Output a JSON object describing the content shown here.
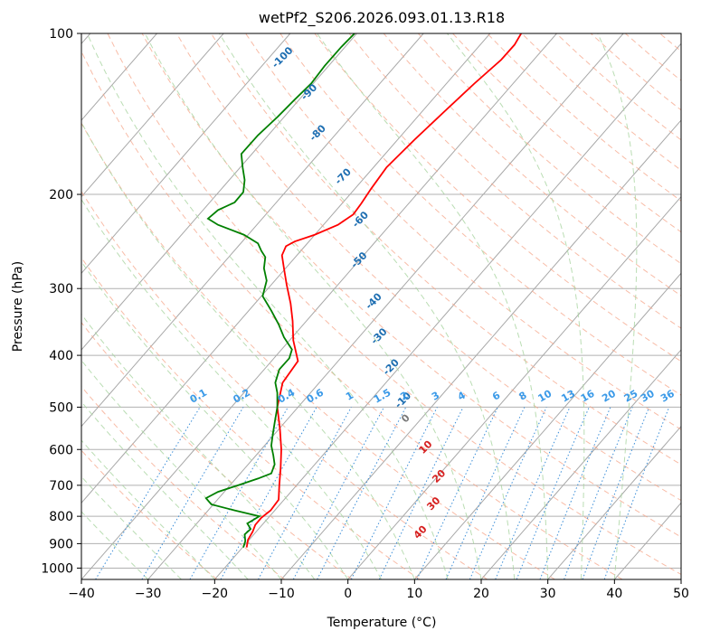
{
  "chart_data": {
    "type": "line",
    "title": "wetPf2_S206.2026.093.01.13.R18",
    "xlabel": "Temperature (°C)",
    "ylabel": "Pressure (hPa)",
    "xlim": [
      -40,
      50
    ],
    "ylim": [
      1050,
      100
    ],
    "y_scale": "log",
    "grid": true,
    "x_ticks": [
      "−40",
      "−30",
      "−20",
      "−10",
      "0",
      "10",
      "20",
      "30",
      "40",
      "50"
    ],
    "x_tick_values": [
      -40,
      -30,
      -20,
      -10,
      0,
      10,
      20,
      30,
      40,
      50
    ],
    "y_ticks": [
      "1000",
      "900",
      "800",
      "700",
      "600",
      "500",
      "400",
      "300",
      "200",
      "100"
    ],
    "y_tick_values": [
      1000,
      900,
      800,
      700,
      600,
      500,
      400,
      300,
      200,
      100
    ],
    "series": [
      {
        "color": "#ff0000",
        "points": [
          [
            -15.2,
            915
          ],
          [
            -15.0,
            885
          ],
          [
            -14.3,
            855
          ],
          [
            -13.9,
            830
          ],
          [
            -13.0,
            805
          ],
          [
            -11.6,
            780
          ],
          [
            -10.4,
            745
          ],
          [
            -10.3,
            700
          ],
          [
            -10.1,
            650
          ],
          [
            -10.0,
            600
          ],
          [
            -10.2,
            550
          ],
          [
            -10.6,
            500
          ],
          [
            -9.8,
            450
          ],
          [
            -7.5,
            410
          ],
          [
            -8.2,
            375
          ],
          [
            -8.3,
            345
          ],
          [
            -8.6,
            320
          ],
          [
            -9.2,
            295
          ],
          [
            -9.6,
            275
          ],
          [
            -9.9,
            260
          ],
          [
            -9.3,
            250
          ],
          [
            -8.0,
            245
          ],
          [
            -5.0,
            238
          ],
          [
            -1.5,
            228
          ],
          [
            0.8,
            218
          ],
          [
            2.0,
            208
          ],
          [
            3.5,
            195
          ],
          [
            5.8,
            178
          ],
          [
            10.0,
            158
          ],
          [
            15.0,
            138
          ],
          [
            19.0,
            124
          ],
          [
            23.0,
            112
          ],
          [
            25.0,
            105
          ],
          [
            26.0,
            100
          ]
        ]
      },
      {
        "color": "#008000",
        "points": [
          [
            -15.7,
            915
          ],
          [
            -15.4,
            890
          ],
          [
            -15.5,
            865
          ],
          [
            -14.6,
            845
          ],
          [
            -15.1,
            825
          ],
          [
            -13.3,
            800
          ],
          [
            -17.0,
            780
          ],
          [
            -20.5,
            760
          ],
          [
            -21.3,
            740
          ],
          [
            -19.5,
            720
          ],
          [
            -16.5,
            700
          ],
          [
            -13.5,
            680
          ],
          [
            -11.5,
            665
          ],
          [
            -11.0,
            640
          ],
          [
            -11.2,
            615
          ],
          [
            -11.5,
            590
          ],
          [
            -11.3,
            565
          ],
          [
            -11.0,
            535
          ],
          [
            -10.6,
            500
          ],
          [
            -10.6,
            470
          ],
          [
            -10.9,
            450
          ],
          [
            -10.3,
            425
          ],
          [
            -8.8,
            405
          ],
          [
            -8.4,
            390
          ],
          [
            -9.6,
            370
          ],
          [
            -10.4,
            350
          ],
          [
            -11.5,
            330
          ],
          [
            -12.8,
            310
          ],
          [
            -12.2,
            290
          ],
          [
            -12.6,
            275
          ],
          [
            -12.4,
            262
          ],
          [
            -13.0,
            255
          ],
          [
            -13.5,
            247
          ],
          [
            -15.6,
            238
          ],
          [
            -19.5,
            228
          ],
          [
            -21.0,
            222
          ],
          [
            -19.5,
            214
          ],
          [
            -17.0,
            207
          ],
          [
            -15.7,
            198
          ],
          [
            -15.5,
            188
          ],
          [
            -15.8,
            178
          ],
          [
            -16.0,
            168
          ],
          [
            -13.5,
            155
          ],
          [
            -10.5,
            143
          ],
          [
            -8.0,
            133
          ],
          [
            -5.5,
            124
          ],
          [
            -3.5,
            115
          ],
          [
            -1.0,
            106
          ],
          [
            1.0,
            100
          ]
        ]
      }
    ],
    "isotherm_labels": {
      "values": [
        "-100",
        "-90",
        "-80",
        "-70",
        "-60",
        "-50",
        "-40",
        "-30",
        "-20",
        "-10",
        "0",
        "10",
        "20",
        "30",
        "40"
      ],
      "positions": [
        [
          -9.5,
          112
        ],
        [
          -5.5,
          130
        ],
        [
          -4.2,
          155
        ],
        [
          -0.4,
          187
        ],
        [
          2.2,
          225
        ],
        [
          2.0,
          268
        ],
        [
          4.2,
          320
        ],
        [
          5.0,
          372
        ],
        [
          6.8,
          425
        ],
        [
          8.6,
          490
        ],
        [
          9.0,
          530
        ],
        [
          12.0,
          600
        ],
        [
          14.0,
          680
        ],
        [
          13.2,
          765
        ],
        [
          11.2,
          865
        ]
      ]
    },
    "mixing_ratio_labels": {
      "values": [
        "0.1",
        "0.2",
        "0.4",
        "0.6",
        "1",
        "1.5",
        "2",
        "3",
        "4",
        "6",
        "8",
        "10",
        "13",
        "16",
        "20",
        "25",
        "30",
        "36"
      ],
      "temps": [
        -22.2,
        -15.7,
        -9.0,
        -4.7,
        0.5,
        5.4,
        8.7,
        13.4,
        17.3,
        22.5,
        26.5,
        29.8,
        33.3,
        36.2,
        39.4,
        42.7,
        45.2,
        48.2
      ],
      "pressure": 490
    }
  }
}
